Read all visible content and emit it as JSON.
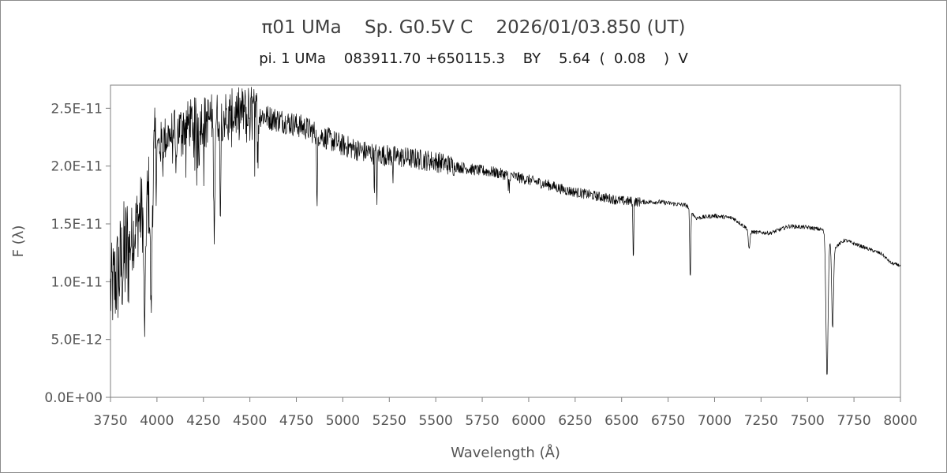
{
  "chart_data": {
    "type": "line",
    "title": "π01 UMa    Sp. G0.5V C    2026/01/03.850 (UT)",
    "subtitle": "pi. 1 UMa    083911.70 +650115.3    BY    5.64  (  0.08    )  V",
    "xlabel": "Wavelength (Å)",
    "ylabel": "F (λ)",
    "xlim": [
      3750,
      8000
    ],
    "ylim": [
      0,
      2.7e-11
    ],
    "x_ticks": [
      "3750",
      "4000",
      "4250",
      "4500",
      "4750",
      "5000",
      "5250",
      "5500",
      "5750",
      "6000",
      "6250",
      "6500",
      "6750",
      "7000",
      "7250",
      "7500",
      "7750",
      "8000"
    ],
    "y_ticks": [
      {
        "label": "0.0E+00",
        "value": 0
      },
      {
        "label": "5.0E-12",
        "value": 5e-12
      },
      {
        "label": "1.0E-11",
        "value": 1e-11
      },
      {
        "label": "1.5E-11",
        "value": 1.5e-11
      },
      {
        "label": "2.0E-11",
        "value": 2e-11
      },
      {
        "label": "2.5E-11",
        "value": 2.5e-11
      }
    ],
    "grid": false,
    "legend": "none",
    "line_color": "#000000",
    "series": [
      {
        "continuum": [
          [
            3750,
            9e-12
          ],
          [
            3800,
            1.1e-11
          ],
          [
            3850,
            1.3e-11
          ],
          [
            3900,
            1.55e-11
          ],
          [
            3950,
            1.7e-11
          ],
          [
            3975,
            1.95e-11
          ],
          [
            4000,
            2.15e-11
          ],
          [
            4050,
            2.25e-11
          ],
          [
            4100,
            2.3e-11
          ],
          [
            4150,
            2.35e-11
          ],
          [
            4200,
            2.38e-11
          ],
          [
            4300,
            2.42e-11
          ],
          [
            4400,
            2.45e-11
          ],
          [
            4500,
            2.48e-11
          ],
          [
            4550,
            2.45e-11
          ],
          [
            4600,
            2.42e-11
          ],
          [
            4700,
            2.38e-11
          ],
          [
            4800,
            2.33e-11
          ],
          [
            4900,
            2.25e-11
          ],
          [
            5000,
            2.18e-11
          ],
          [
            5100,
            2.13e-11
          ],
          [
            5200,
            2.1e-11
          ],
          [
            5300,
            2.08e-11
          ],
          [
            5400,
            2.06e-11
          ],
          [
            5500,
            2.04e-11
          ],
          [
            5600,
            2e-11
          ],
          [
            5700,
            1.97e-11
          ],
          [
            5800,
            1.95e-11
          ],
          [
            5900,
            1.92e-11
          ],
          [
            6000,
            1.88e-11
          ],
          [
            6100,
            1.84e-11
          ],
          [
            6200,
            1.79e-11
          ],
          [
            6300,
            1.76e-11
          ],
          [
            6400,
            1.73e-11
          ],
          [
            6500,
            1.7e-11
          ],
          [
            6600,
            1.69e-11
          ],
          [
            6700,
            1.69e-11
          ],
          [
            6800,
            1.67e-11
          ],
          [
            6850,
            1.66e-11
          ],
          [
            6900,
            1.55e-11
          ],
          [
            7000,
            1.57e-11
          ],
          [
            7100,
            1.55e-11
          ],
          [
            7200,
            1.43e-11
          ],
          [
            7300,
            1.42e-11
          ],
          [
            7400,
            1.48e-11
          ],
          [
            7500,
            1.47e-11
          ],
          [
            7580,
            1.45e-11
          ],
          [
            7650,
            1.3e-11
          ],
          [
            7700,
            1.36e-11
          ],
          [
            7800,
            1.3e-11
          ],
          [
            7900,
            1.24e-11
          ],
          [
            7950,
            1.16e-11
          ],
          [
            8000,
            1.14e-11
          ]
        ],
        "absorption_lines": [
          {
            "x": 3933.7,
            "depth": 0.65,
            "width": 6
          },
          {
            "x": 3968.5,
            "depth": 0.6,
            "width": 6
          },
          {
            "x": 4101.7,
            "depth": 0.2,
            "width": 3
          },
          {
            "x": 4227,
            "depth": 0.12,
            "width": 2
          },
          {
            "x": 4308,
            "depth": 0.4,
            "width": 5
          },
          {
            "x": 4340.5,
            "depth": 0.3,
            "width": 4
          },
          {
            "x": 4383.5,
            "depth": 0.15,
            "width": 2
          },
          {
            "x": 4861.3,
            "depth": 0.3,
            "width": 3
          },
          {
            "x": 5169,
            "depth": 0.16,
            "width": 2
          },
          {
            "x": 5183.6,
            "depth": 0.22,
            "width": 2
          },
          {
            "x": 5270,
            "depth": 0.1,
            "width": 2
          },
          {
            "x": 5890,
            "depth": 0.08,
            "width": 2
          },
          {
            "x": 5896,
            "depth": 0.08,
            "width": 2
          },
          {
            "x": 6562.8,
            "depth": 0.3,
            "width": 3
          },
          {
            "x": 6869,
            "depth": 0.37,
            "width": 4
          },
          {
            "x": 7186,
            "depth": 0.12,
            "width": 6
          },
          {
            "x": 7605,
            "depth": 0.87,
            "width": 8
          },
          {
            "x": 7635,
            "depth": 0.55,
            "width": 7
          }
        ]
      }
    ]
  }
}
